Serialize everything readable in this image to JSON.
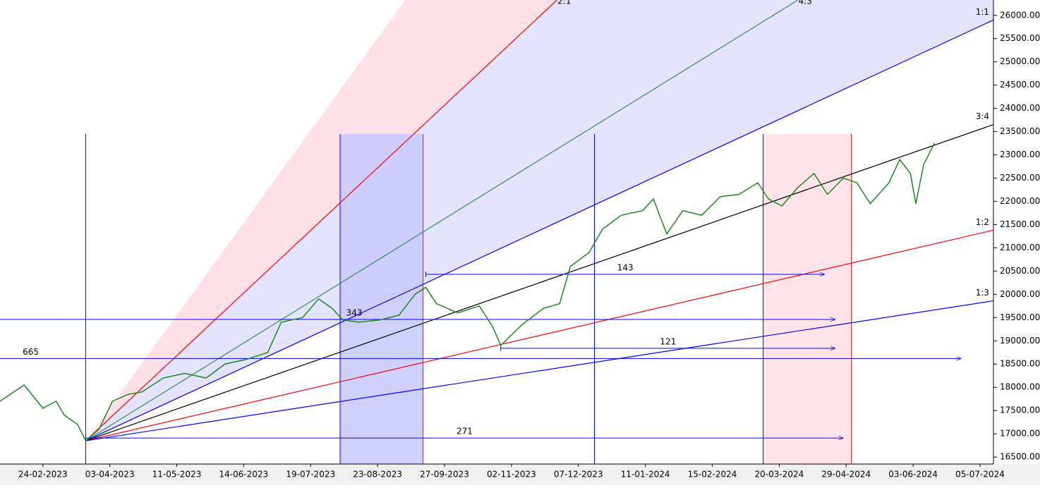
{
  "chart_data": {
    "type": "line",
    "xlim": [
      -16,
      355
    ],
    "ylim": [
      16350,
      26330
    ],
    "xticks": [
      {
        "value": 0,
        "label": "24-02-2023"
      },
      {
        "value": 25,
        "label": "03-04-2023"
      },
      {
        "value": 50,
        "label": "11-05-2023"
      },
      {
        "value": 75,
        "label": "14-06-2023"
      },
      {
        "value": 100,
        "label": "19-07-2023"
      },
      {
        "value": 125,
        "label": "23-08-2023"
      },
      {
        "value": 150,
        "label": "27-09-2023"
      },
      {
        "value": 175,
        "label": "02-11-2023"
      },
      {
        "value": 200,
        "label": "07-12-2023"
      },
      {
        "value": 225,
        "label": "11-01-2024"
      },
      {
        "value": 250,
        "label": "15-02-2024"
      },
      {
        "value": 275,
        "label": "20-03-2024"
      },
      {
        "value": 300,
        "label": "29-04-2024"
      },
      {
        "value": 325,
        "label": "03-06-2024"
      },
      {
        "value": 350,
        "label": "05-07-2024"
      }
    ],
    "yticks": [
      {
        "value": 16500,
        "label": "16500.00"
      },
      {
        "value": 17000,
        "label": "17000.00"
      },
      {
        "value": 17500,
        "label": "17500.00"
      },
      {
        "value": 18000,
        "label": "18000.00"
      },
      {
        "value": 18500,
        "label": "18500.00"
      },
      {
        "value": 19000,
        "label": "19000.00"
      },
      {
        "value": 19500,
        "label": "19500.00"
      },
      {
        "value": 20000,
        "label": "20000.00"
      },
      {
        "value": 20500,
        "label": "20500.00"
      },
      {
        "value": 21000,
        "label": "21000.00"
      },
      {
        "value": 21500,
        "label": "21500.00"
      },
      {
        "value": 22000,
        "label": "22000.00"
      },
      {
        "value": 22500,
        "label": "22500.00"
      },
      {
        "value": 23000,
        "label": "23000.00"
      },
      {
        "value": 23500,
        "label": "23500.00"
      },
      {
        "value": 24000,
        "label": "24000.00"
      },
      {
        "value": 24500,
        "label": "24500.00"
      },
      {
        "value": 25000,
        "label": "25000.00"
      },
      {
        "value": 25500,
        "label": "25500.00"
      },
      {
        "value": 26000,
        "label": "26000.00"
      }
    ],
    "series": [
      {
        "color": "#1a8a1a",
        "x": [
          -16,
          -7,
          0,
          5,
          8,
          13,
          16,
          21,
          26,
          32,
          37,
          45,
          53,
          61,
          68,
          76,
          84,
          89,
          97,
          103,
          108,
          112,
          118,
          126,
          133,
          139,
          143,
          147,
          155,
          163,
          168,
          171,
          179,
          187,
          193,
          197,
          204,
          209,
          216,
          224,
          228,
          233,
          239,
          246,
          253,
          260,
          267,
          271,
          276,
          282,
          288,
          293,
          299,
          304,
          309,
          316,
          320,
          324,
          326,
          329,
          333
        ],
        "values": [
          17700,
          18050,
          17550,
          17700,
          17400,
          17200,
          16850,
          17100,
          17700,
          17850,
          17900,
          18200,
          18300,
          18200,
          18500,
          18600,
          18750,
          19400,
          19500,
          19900,
          19700,
          19450,
          19400,
          19450,
          19550,
          20000,
          20150,
          19800,
          19600,
          19750,
          19300,
          18900,
          19350,
          19700,
          19800,
          20600,
          20900,
          21400,
          21700,
          21800,
          22050,
          21300,
          21800,
          21700,
          22100,
          22150,
          22400,
          22050,
          21900,
          22300,
          22600,
          22150,
          22500,
          22400,
          21950,
          22400,
          22900,
          22600,
          21950,
          22800,
          23250
        ]
      }
    ],
    "fan": [
      {
        "label": "2:1",
        "color": "#ff0000",
        "x": [
          16,
          192
        ],
        "values": [
          16850,
          26330
        ]
      },
      {
        "label": "4:3",
        "color": "#2e8b57",
        "x": [
          16,
          282
        ],
        "values": [
          16850,
          26330
        ]
      },
      {
        "label": "1:1",
        "color": "#0000ff",
        "x": [
          16,
          355
        ],
        "values": [
          16850,
          25900
        ]
      },
      {
        "label": "3:4",
        "color": "#000000",
        "x": [
          16,
          355
        ],
        "values": [
          16850,
          23650
        ]
      },
      {
        "label": "1:2",
        "color": "#ff0000",
        "x": [
          16,
          355
        ],
        "values": [
          16850,
          21380
        ]
      },
      {
        "label": "1:3",
        "color": "#0000ff",
        "x": [
          16,
          355
        ],
        "values": [
          16850,
          19860
        ]
      }
    ],
    "levels": [
      {
        "label": "143",
        "value": 20430,
        "x": [
          143,
          292
        ]
      },
      {
        "label": "343",
        "value": 19460,
        "x": [
          -16,
          296
        ]
      },
      {
        "label": "121",
        "value": 18840,
        "x": [
          171,
          296
        ]
      },
      {
        "label": "665",
        "value": 18620,
        "x": [
          -16,
          343
        ]
      },
      {
        "label": "271",
        "value": 16910,
        "x": [
          16,
          299
        ]
      }
    ],
    "verticals": [
      {
        "x": 16,
        "color": "#0000ff"
      },
      {
        "x": 111,
        "color": "#0000ff"
      },
      {
        "x": 142,
        "color": "#ff0000"
      },
      {
        "x": 206,
        "color": "#0000ff"
      },
      {
        "x": 269,
        "color": "#0000ff"
      },
      {
        "x": 302,
        "color": "#ff0000"
      }
    ],
    "vertical_top": 23450,
    "zones": [
      {
        "x": [
          111,
          142
        ],
        "color": "#c8c8ff"
      },
      {
        "x": [
          269,
          302
        ],
        "color": "#ffe0e6"
      }
    ]
  }
}
